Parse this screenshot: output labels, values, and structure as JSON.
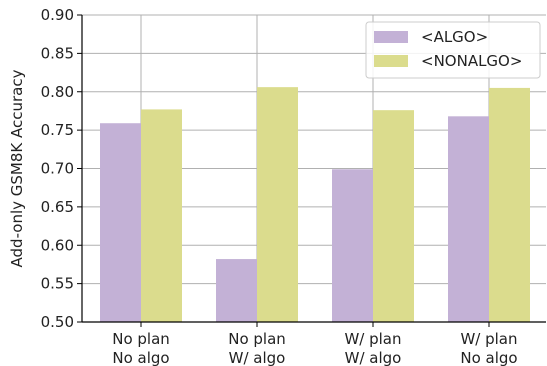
{
  "chart_data": {
    "type": "bar",
    "categories": [
      [
        "No plan",
        "No algo"
      ],
      [
        "No plan",
        "W/ algo"
      ],
      [
        "W/ plan",
        "W/ algo"
      ],
      [
        "W/ plan",
        "No algo"
      ]
    ],
    "series": [
      {
        "name": "<ALGO>",
        "values": [
          0.759,
          0.582,
          0.699,
          0.768
        ],
        "color": "#c3b1d6"
      },
      {
        "name": "<NONALGO>",
        "values": [
          0.777,
          0.806,
          0.776,
          0.805
        ],
        "color": "#dbdc8d"
      }
    ],
    "ylabel": "Add-only GSM8K Accuracy",
    "xlabel": "",
    "ylim": [
      0.5,
      0.9
    ],
    "yticks": [
      "0.50",
      "0.55",
      "0.60",
      "0.65",
      "0.70",
      "0.75",
      "0.80",
      "0.85",
      "0.90"
    ],
    "grid": true,
    "legend_position": "top-right"
  }
}
